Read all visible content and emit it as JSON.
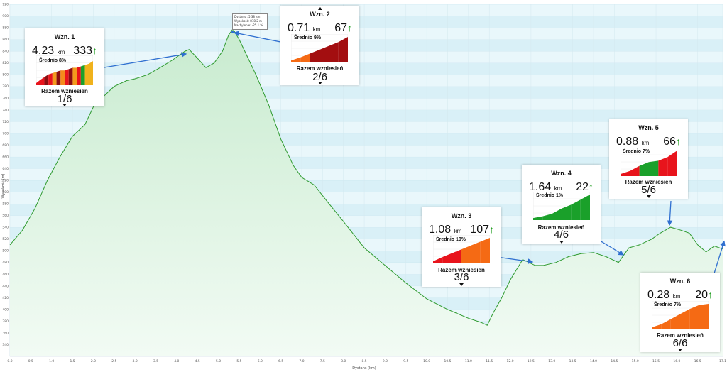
{
  "chart_data": {
    "type": "area",
    "xlabel": "Dystans (km)",
    "ylabel": "Wysokość (m)",
    "xlim": [
      0,
      17.1
    ],
    "ylim": [
      320,
      920
    ],
    "x_ticks": [
      "0.0",
      "0.5",
      "1.0",
      "1.5",
      "2.0",
      "2.5",
      "3.0",
      "3.5",
      "4.0",
      "4.5",
      "5.0",
      "5.5",
      "6.0",
      "6.5",
      "7.0",
      "7.5",
      "8.0",
      "8.5",
      "9.0",
      "9.5",
      "10.0",
      "10.5",
      "11.0",
      "11.5",
      "12.0",
      "12.5",
      "13.0",
      "13.5",
      "14.0",
      "14.5",
      "15.0",
      "15.5",
      "16.0",
      "16.5",
      "17.1"
    ],
    "y_ticks": [
      "340",
      "360",
      "380",
      "400",
      "420",
      "440",
      "460",
      "480",
      "500",
      "520",
      "540",
      "560",
      "580",
      "600",
      "620",
      "640",
      "660",
      "680",
      "700",
      "720",
      "740",
      "760",
      "780",
      "800",
      "820",
      "840",
      "860",
      "880",
      "900",
      "920"
    ],
    "series": [
      {
        "x": [
          0,
          0.3,
          0.6,
          0.9,
          1.2,
          1.5,
          1.8,
          2.0,
          2.2,
          2.5,
          2.8,
          3.0,
          3.3,
          3.6,
          3.9,
          4.2,
          4.3,
          4.5,
          4.7,
          4.9,
          5.1,
          5.25,
          5.35,
          5.5,
          5.7,
          5.9,
          6.2,
          6.5,
          6.8,
          7.0,
          7.3,
          7.6,
          8.0,
          8.5,
          9.0,
          9.5,
          10.0,
          10.5,
          11.0,
          11.3,
          11.45,
          11.6,
          11.8,
          12.0,
          12.3,
          12.6,
          12.8,
          13.1,
          13.4,
          13.7,
          14.0,
          14.3,
          14.6,
          14.85,
          15.1,
          15.4,
          15.6,
          15.85,
          16.1,
          16.3,
          16.5,
          16.7,
          16.9,
          17.1
        ],
        "y": [
          510,
          535,
          572,
          620,
          660,
          695,
          715,
          745,
          760,
          780,
          790,
          793,
          800,
          812,
          825,
          840,
          843,
          828,
          812,
          820,
          840,
          868,
          878,
          860,
          830,
          800,
          750,
          690,
          645,
          625,
          612,
          585,
          550,
          505,
          475,
          445,
          418,
          400,
          385,
          378,
          373,
          395,
          420,
          450,
          485,
          475,
          475,
          480,
          490,
          495,
          497,
          490,
          480,
          505,
          510,
          520,
          530,
          540,
          535,
          530,
          510,
          498,
          508,
          503
        ]
      }
    ],
    "peak_tooltip": [
      "Dystans : 5.38 km",
      "Wysokość: 878.2 m",
      "Nachylenie: -25.1 %"
    ],
    "climbs": [
      {
        "title": "Wzn. 1",
        "dist": "4.23",
        "unit": "km",
        "gain": "333",
        "arrow": "↑",
        "avg": "Średnio 8%",
        "total_label": "Razem wzniesień",
        "index": "1/6",
        "colors": [
          "#e8141c",
          "#e8141c",
          "#8b0e12",
          "#e8141c",
          "#f39a1c",
          "#8b0e12",
          "#f58a1c",
          "#e8141c",
          "#8b0e12",
          "#f39a1c",
          "#e8141c",
          "#1aa02a",
          "#f0b21c",
          "#f0b21c"
        ],
        "levels": [
          0.2,
          0.3,
          0.4,
          0.45,
          0.5,
          0.55,
          0.55,
          0.6,
          0.65,
          0.65,
          0.7,
          0.75,
          0.8,
          0.9
        ]
      },
      {
        "title": "Wzn. 2",
        "dist": "0.71",
        "unit": "km",
        "gain": "67",
        "arrow": "↑",
        "avg": "Średnio 9%",
        "total_label": "Razem wzniesień",
        "index": "2/6",
        "colors": [
          "#f56a14",
          "#f56a14",
          "#a30e10",
          "#a30e10",
          "#a30e10",
          "#a30e10"
        ],
        "levels": [
          0.2,
          0.35,
          0.5,
          0.65,
          0.8,
          1.0
        ]
      },
      {
        "title": "Wzn. 3",
        "dist": "1.08",
        "unit": "km",
        "gain": "107",
        "arrow": "↑",
        "avg": "Średnio 10%",
        "total_label": "Razem wzniesień",
        "index": "3/6",
        "colors": [
          "#e8141c",
          "#e8141c",
          "#e8141c",
          "#f56a14",
          "#f56a14",
          "#f56a14"
        ],
        "levels": [
          0.25,
          0.4,
          0.55,
          0.7,
          0.85,
          1.0
        ]
      },
      {
        "title": "Wzn. 4",
        "dist": "1.64",
        "unit": "km",
        "gain": "22",
        "arrow": "↑",
        "avg": "Średnio 1%",
        "total_label": "Razem wzniesień",
        "index": "4/6",
        "colors": [
          "#1aa02a",
          "#1aa02a",
          "#1aa02a",
          "#1aa02a",
          "#1aa02a",
          "#1aa02a"
        ],
        "levels": [
          0.15,
          0.25,
          0.45,
          0.6,
          0.8,
          1.0
        ]
      },
      {
        "title": "Wzn. 5",
        "dist": "0.88",
        "unit": "km",
        "gain": "66",
        "arrow": "↑",
        "avg": "Średnio 7%",
        "total_label": "Razem wzniesień",
        "index": "5/6",
        "colors": [
          "#e8141c",
          "#e8141c",
          "#1aa02a",
          "#1aa02a",
          "#e8141c",
          "#e8141c"
        ],
        "levels": [
          0.2,
          0.4,
          0.55,
          0.6,
          0.75,
          1.0
        ]
      },
      {
        "title": "Wzn. 6",
        "dist": "0.28",
        "unit": "km",
        "gain": "20",
        "arrow": "↑",
        "avg": "Średnio 7%",
        "total_label": "Razem wzniesień",
        "index": "6/6",
        "colors": [
          "#f56a14",
          "#f56a14",
          "#f56a14",
          "#f56a14",
          "#f56a14",
          "#f56a14"
        ],
        "levels": [
          0.2,
          0.4,
          0.6,
          0.8,
          0.95,
          1.0
        ]
      }
    ]
  },
  "colors": {
    "line": "#2e9a2e",
    "band_light": "#e9f7fb",
    "band_dark": "#d9f0f7",
    "fill_top": "#c8ebcf",
    "arrow": "#2f6fd0"
  }
}
